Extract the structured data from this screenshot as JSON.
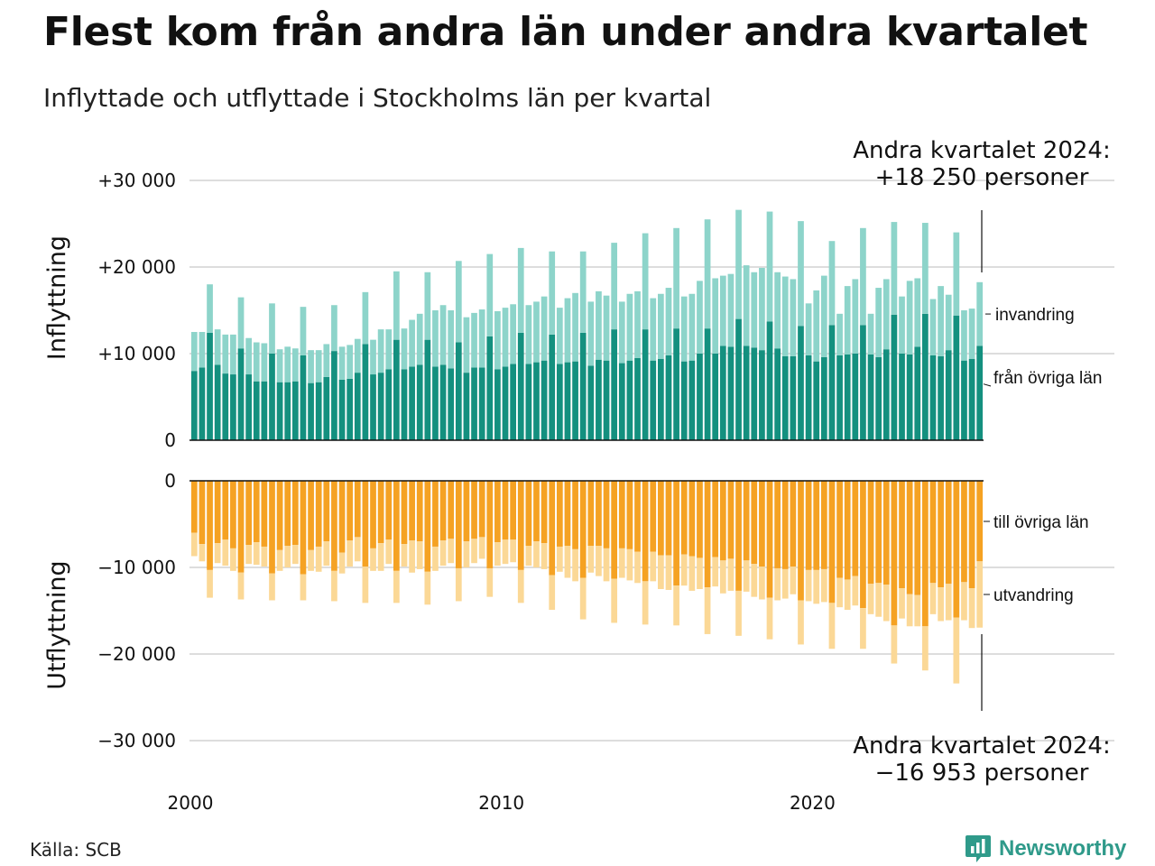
{
  "header": {
    "title": "Flest kom från andra län under andra kvartalet",
    "subtitle": "Inflyttade och utflyttade i Stockholms län per kvartal"
  },
  "footer": {
    "source": "Källa: SCB",
    "brand": "Newsworthy",
    "brand_icon": "bar-chart-speech-bubble-icon"
  },
  "colors": {
    "inflow_domestic": "#14907f",
    "inflow_immigration": "#8dd4ca",
    "outflow_domestic": "#f5a223",
    "outflow_emigration": "#fbd896",
    "grid": "#dddddd",
    "brand": "#2f9a8a"
  },
  "chart_data": {
    "type": "bar",
    "stacked": true,
    "x_ticks": [
      "2000",
      "2010",
      "2020"
    ],
    "panels": [
      {
        "name": "inflow",
        "ylabel": "Inflyttning",
        "ylim": [
          0,
          30000
        ],
        "y_ticks": [
          {
            "value": 0,
            "label": "0"
          },
          {
            "value": 10000,
            "label": "+10 000"
          },
          {
            "value": 20000,
            "label": "+20 000"
          },
          {
            "value": 30000,
            "label": "+30 000"
          }
        ],
        "annotation": {
          "line1": "Andra kvartalet 2024:",
          "line2": "+18 250 personer"
        },
        "series": [
          {
            "name": "från övriga län",
            "label": "från övriga län",
            "values": [
              8000,
              8400,
              12400,
              8700,
              7700,
              7600,
              10600,
              7600,
              6800,
              6800,
              10000,
              6700,
              6700,
              6800,
              9800,
              6600,
              6700,
              7300,
              10300,
              7000,
              7100,
              7800,
              11100,
              7600,
              7800,
              8200,
              11600,
              8200,
              8500,
              8700,
              11600,
              8500,
              8700,
              8300,
              11300,
              7800,
              8400,
              8400,
              12000,
              8200,
              8500,
              8800,
              12400,
              8800,
              9000,
              9200,
              12200,
              8800,
              9000,
              9100,
              12400,
              8600,
              9300,
              9200,
              12800,
              8900,
              9200,
              9500,
              12800,
              9200,
              9400,
              9800,
              12900,
              9100,
              9200,
              10000,
              12900,
              10000,
              10900,
              10800,
              14000,
              10900,
              10700,
              10400,
              13700,
              10600,
              9700,
              9700,
              13200,
              9800,
              9100,
              9600,
              13300,
              9800,
              9900,
              10000,
              13300,
              9900,
              9600,
              10500,
              14500,
              10000,
              9900,
              10800,
              14600,
              9800,
              9700,
              10400,
              14400,
              9200,
              9400,
              10900
            ]
          },
          {
            "name": "invandring",
            "label": "invandring",
            "values": [
              4500,
              4100,
              5600,
              4100,
              4500,
              4600,
              5900,
              4200,
              4500,
              4400,
              5800,
              3800,
              4100,
              3800,
              5600,
              3800,
              3700,
              3800,
              5300,
              3800,
              3900,
              3900,
              6000,
              4000,
              5000,
              4600,
              7900,
              4700,
              5400,
              5900,
              7800,
              6500,
              6900,
              6700,
              9400,
              6400,
              6300,
              6700,
              9500,
              6700,
              6800,
              6900,
              9800,
              6800,
              7000,
              7400,
              9600,
              6500,
              7400,
              7900,
              9400,
              7400,
              7900,
              7500,
              10000,
              7100,
              7700,
              7700,
              11100,
              7200,
              7500,
              7800,
              11600,
              7500,
              7700,
              8400,
              12600,
              8700,
              8100,
              8400,
              12600,
              9300,
              8700,
              9500,
              12700,
              8800,
              9200,
              8900,
              12100,
              6000,
              8200,
              9400,
              9700,
              4800,
              7900,
              8600,
              11200,
              4700,
              8000,
              8100,
              10700,
              6600,
              8500,
              7900,
              10500,
              6500,
              8100,
              6400,
              9600,
              5800,
              5800,
              7350
            ]
          }
        ]
      },
      {
        "name": "outflow",
        "ylabel": "Utflyttning",
        "ylim": [
          -30000,
          0
        ],
        "y_ticks": [
          {
            "value": 0,
            "label": "0"
          },
          {
            "value": -10000,
            "label": "−10 000"
          },
          {
            "value": -20000,
            "label": "−20 000"
          },
          {
            "value": -30000,
            "label": "−30 000"
          }
        ],
        "annotation": {
          "line1": "Andra kvartalet 2024:",
          "line2": "−16 953 personer"
        },
        "series": [
          {
            "name": "till övriga län",
            "label": "till övriga län",
            "values": [
              -6000,
              -7300,
              -10300,
              -7200,
              -6800,
              -7800,
              -10600,
              -7400,
              -7100,
              -7600,
              -10700,
              -8000,
              -7500,
              -7400,
              -10800,
              -8000,
              -7600,
              -7000,
              -10400,
              -8300,
              -6900,
              -6500,
              -9900,
              -7800,
              -7200,
              -6800,
              -10400,
              -7300,
              -6900,
              -7000,
              -10500,
              -7600,
              -6900,
              -6700,
              -10100,
              -7000,
              -6700,
              -6500,
              -10100,
              -7100,
              -6800,
              -6800,
              -10300,
              -7500,
              -7000,
              -7200,
              -10900,
              -7600,
              -7500,
              -7900,
              -11200,
              -7500,
              -7500,
              -7800,
              -11300,
              -7800,
              -7900,
              -8200,
              -11600,
              -8200,
              -8600,
              -8600,
              -12100,
              -8500,
              -8700,
              -8900,
              -12300,
              -8800,
              -9200,
              -9000,
              -12700,
              -9200,
              -9600,
              -9900,
              -13500,
              -10100,
              -10200,
              -9900,
              -13800,
              -10300,
              -10300,
              -10200,
              -14100,
              -11200,
              -11400,
              -11000,
              -14700,
              -11900,
              -11800,
              -12000,
              -16700,
              -12400,
              -13100,
              -13200,
              -16800,
              -11800,
              -12300,
              -11900,
              -15800,
              -11700,
              -12400,
              -9300
            ]
          },
          {
            "name": "utvandring",
            "label": "utvandring",
            "values": [
              -2700,
              -2000,
              -3200,
              -2300,
              -3000,
              -2600,
              -3100,
              -2200,
              -2600,
              -2300,
              -3100,
              -2400,
              -2500,
              -2200,
              -3000,
              -2400,
              -2900,
              -2800,
              -3500,
              -2400,
              -3000,
              -2800,
              -4200,
              -2600,
              -3200,
              -2800,
              -3700,
              -2600,
              -3700,
              -3200,
              -3800,
              -2800,
              -2900,
              -2800,
              -3800,
              -3000,
              -2800,
              -2500,
              -3300,
              -2700,
              -2800,
              -2600,
              -3800,
              -2300,
              -3000,
              -3000,
              -4000,
              -2900,
              -3700,
              -3700,
              -4800,
              -3100,
              -3500,
              -3800,
              -5100,
              -3400,
              -3600,
              -3600,
              -5000,
              -3400,
              -3900,
              -4000,
              -4600,
              -3600,
              -4000,
              -3600,
              -5400,
              -3400,
              -3800,
              -3700,
              -5200,
              -3600,
              -3800,
              -3800,
              -4800,
              -3700,
              -3400,
              -3200,
              -5100,
              -3600,
              -3900,
              -3800,
              -5300,
              -3400,
              -3500,
              -3400,
              -4700,
              -3500,
              -3900,
              -4200,
              -4400,
              -3500,
              -3700,
              -3600,
              -5100,
              -3600,
              -3900,
              -4200,
              -7600,
              -4400,
              -4600,
              -7653
            ]
          }
        ]
      }
    ]
  }
}
